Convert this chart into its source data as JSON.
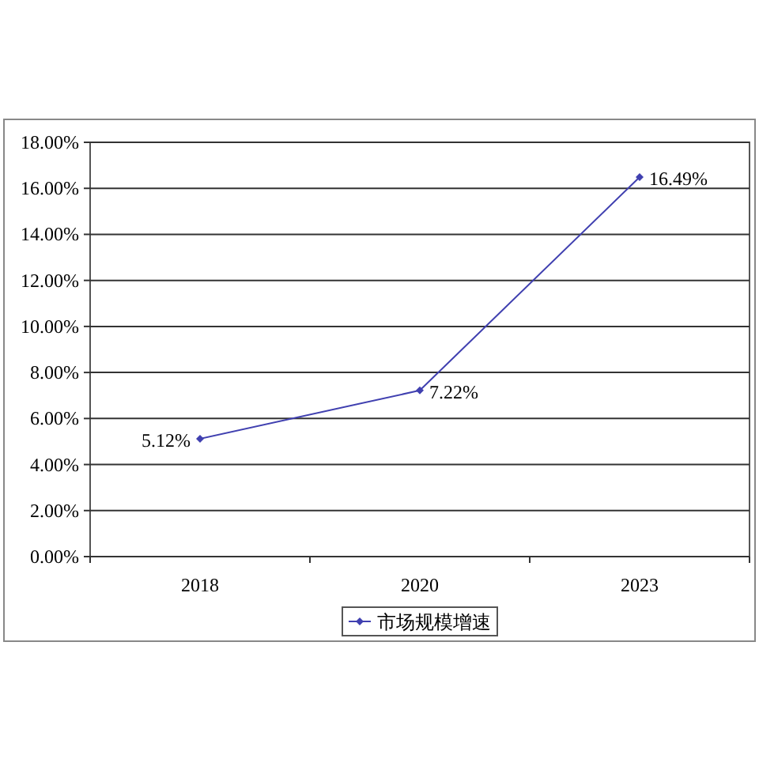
{
  "chart_data": {
    "type": "line",
    "categories": [
      "2018",
      "2020",
      "2023"
    ],
    "series": [
      {
        "name": "市场规模增速",
        "color": "#4040b0",
        "values": [
          5.12,
          7.22,
          16.49
        ],
        "value_labels": [
          "5.12%",
          "7.22%",
          "16.49%"
        ]
      }
    ],
    "ylim": [
      0,
      18
    ],
    "yticks": [
      {
        "value": 0,
        "label": "0.00%"
      },
      {
        "value": 2,
        "label": "2.00%"
      },
      {
        "value": 4,
        "label": "4.00%"
      },
      {
        "value": 6,
        "label": "6.00%"
      },
      {
        "value": 8,
        "label": "8.00%"
      },
      {
        "value": 10,
        "label": "10.00%"
      },
      {
        "value": 12,
        "label": "12.00%"
      },
      {
        "value": 14,
        "label": "14.00%"
      },
      {
        "value": 16,
        "label": "16.00%"
      },
      {
        "value": 18,
        "label": "18.00%"
      }
    ],
    "grid": "y",
    "legend": "bottom",
    "marker": "diamond",
    "line_style": "solid"
  }
}
